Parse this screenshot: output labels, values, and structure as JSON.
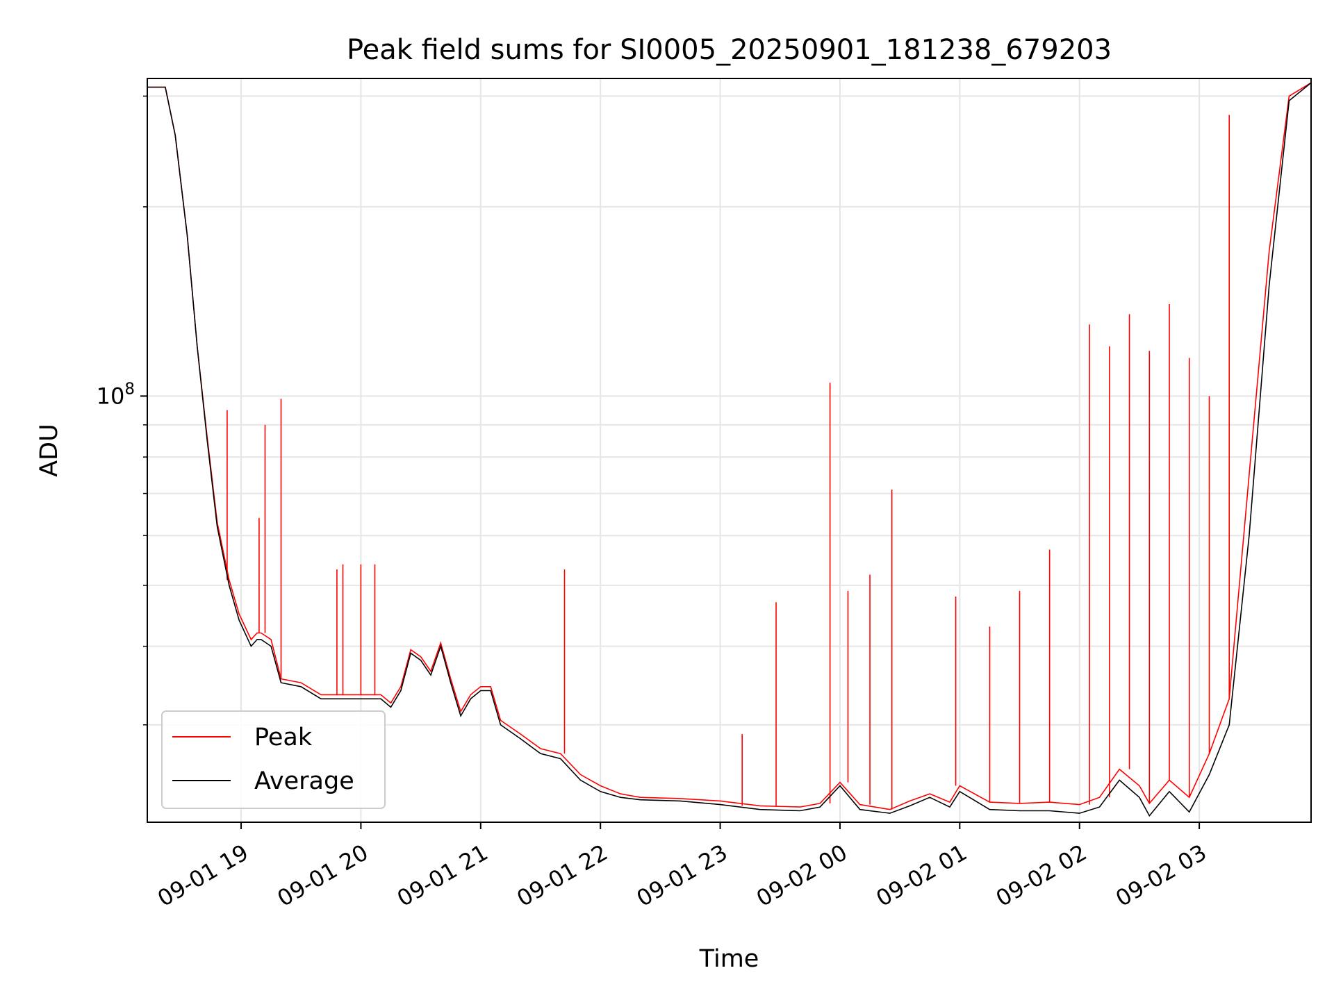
{
  "chart_data": {
    "type": "line",
    "title": "Peak field sums for SI0005_20250901_181238_679203",
    "xlabel": "Time",
    "ylabel": "ADU",
    "yscale": "log",
    "ylim": [
      21000000,
      320000000
    ],
    "xlim": [
      "2025-09-01 18:13",
      "2025-09-02 03:56"
    ],
    "grid": true,
    "legend_position": "lower-left",
    "x_tick_labels": [
      "09-01 19",
      "09-01 20",
      "09-01 21",
      "09-01 22",
      "09-01 23",
      "09-02 00",
      "09-02 01",
      "09-02 02",
      "09-02 03"
    ],
    "x_ticks": [
      "2025-09-01 19:00",
      "2025-09-01 20:00",
      "2025-09-01 21:00",
      "2025-09-01 22:00",
      "2025-09-01 23:00",
      "2025-09-02 00:00",
      "2025-09-02 01:00",
      "2025-09-02 02:00",
      "2025-09-02 03:00"
    ],
    "y_tick_labels": [
      {
        "value": 100000000,
        "base": "10",
        "exp": "8"
      }
    ],
    "colors": {
      "peak": "#ff0000",
      "average": "#000000",
      "grid": "#e6e6e6"
    },
    "series": [
      {
        "name": "Average",
        "x": [
          "2025-09-01 18:13",
          "2025-09-01 18:22",
          "2025-09-01 18:27",
          "2025-09-01 18:33",
          "2025-09-01 18:38",
          "2025-09-01 18:43",
          "2025-09-01 18:48",
          "2025-09-01 18:54",
          "2025-09-01 18:59",
          "2025-09-01 19:05",
          "2025-09-01 19:08",
          "2025-09-01 19:10",
          "2025-09-01 19:15",
          "2025-09-01 19:20",
          "2025-09-01 19:30",
          "2025-09-01 19:40",
          "2025-09-01 19:50",
          "2025-09-01 20:00",
          "2025-09-01 20:10",
          "2025-09-01 20:15",
          "2025-09-01 20:20",
          "2025-09-01 20:25",
          "2025-09-01 20:30",
          "2025-09-01 20:35",
          "2025-09-01 20:40",
          "2025-09-01 20:45",
          "2025-09-01 20:50",
          "2025-09-01 20:55",
          "2025-09-01 21:00",
          "2025-09-01 21:05",
          "2025-09-01 21:10",
          "2025-09-01 21:20",
          "2025-09-01 21:30",
          "2025-09-01 21:40",
          "2025-09-01 21:50",
          "2025-09-01 22:00",
          "2025-09-01 22:10",
          "2025-09-01 22:20",
          "2025-09-01 22:40",
          "2025-09-01 23:00",
          "2025-09-01 23:20",
          "2025-09-01 23:40",
          "2025-09-01 23:50",
          "2025-09-02 00:00",
          "2025-09-02 00:10",
          "2025-09-02 00:25",
          "2025-09-02 00:35",
          "2025-09-02 00:45",
          "2025-09-02 00:55",
          "2025-09-02 01:00",
          "2025-09-02 01:15",
          "2025-09-02 01:30",
          "2025-09-02 01:45",
          "2025-09-02 02:00",
          "2025-09-02 02:10",
          "2025-09-02 02:20",
          "2025-09-02 02:30",
          "2025-09-02 02:35",
          "2025-09-02 02:45",
          "2025-09-02 02:55",
          "2025-09-02 03:05",
          "2025-09-02 03:15",
          "2025-09-02 03:25",
          "2025-09-02 03:35",
          "2025-09-02 03:45",
          "2025-09-02 03:56"
        ],
        "values": [
          310000000,
          310000000,
          260000000,
          180000000,
          120000000,
          85000000,
          62000000,
          50000000,
          44000000,
          40000000,
          41000000,
          41000000,
          40000000,
          35000000,
          34500000,
          33000000,
          33000000,
          33000000,
          33000000,
          32000000,
          34000000,
          39000000,
          38000000,
          36000000,
          40000000,
          35000000,
          31000000,
          33000000,
          34000000,
          34000000,
          30000000,
          28500000,
          27000000,
          26500000,
          24500000,
          23500000,
          23000000,
          22800000,
          22700000,
          22400000,
          22000000,
          21900000,
          22200000,
          24000000,
          22000000,
          21700000,
          22300000,
          23000000,
          22200000,
          23500000,
          22000000,
          21900000,
          21900000,
          21700000,
          22200000,
          24500000,
          23000000,
          21500000,
          23500000,
          21800000,
          25000000,
          30000000,
          60000000,
          150000000,
          295000000,
          315000000
        ]
      },
      {
        "name": "Peak",
        "x": [
          "2025-09-01 18:13",
          "2025-09-01 18:22",
          "2025-09-01 18:27",
          "2025-09-01 18:33",
          "2025-09-01 18:38",
          "2025-09-01 18:43",
          "2025-09-01 18:48",
          "2025-09-01 18:54",
          "2025-09-01 18:59",
          "2025-09-01 19:05",
          "2025-09-01 19:08",
          "2025-09-01 19:10",
          "2025-09-01 19:15",
          "2025-09-01 19:20",
          "2025-09-01 19:30",
          "2025-09-01 19:40",
          "2025-09-01 19:50",
          "2025-09-01 20:00",
          "2025-09-01 20:10",
          "2025-09-01 20:15",
          "2025-09-01 20:20",
          "2025-09-01 20:25",
          "2025-09-01 20:30",
          "2025-09-01 20:35",
          "2025-09-01 20:40",
          "2025-09-01 20:45",
          "2025-09-01 20:50",
          "2025-09-01 20:55",
          "2025-09-01 21:00",
          "2025-09-01 21:05",
          "2025-09-01 21:10",
          "2025-09-01 21:20",
          "2025-09-01 21:30",
          "2025-09-01 21:40",
          "2025-09-01 21:50",
          "2025-09-01 22:00",
          "2025-09-01 22:10",
          "2025-09-01 22:20",
          "2025-09-01 22:40",
          "2025-09-01 23:00",
          "2025-09-01 23:20",
          "2025-09-01 23:40",
          "2025-09-01 23:50",
          "2025-09-02 00:00",
          "2025-09-02 00:10",
          "2025-09-02 00:25",
          "2025-09-02 00:35",
          "2025-09-02 00:45",
          "2025-09-02 00:55",
          "2025-09-02 01:00",
          "2025-09-02 01:15",
          "2025-09-02 01:30",
          "2025-09-02 01:45",
          "2025-09-02 02:00",
          "2025-09-02 02:10",
          "2025-09-02 02:20",
          "2025-09-02 02:30",
          "2025-09-02 02:35",
          "2025-09-02 02:45",
          "2025-09-02 02:55",
          "2025-09-02 03:05",
          "2025-09-02 03:15",
          "2025-09-02 03:25",
          "2025-09-02 03:35",
          "2025-09-02 03:45",
          "2025-09-02 03:56"
        ],
        "values": [
          310000000,
          310000000,
          260000000,
          180000000,
          120000000,
          86000000,
          63000000,
          51000000,
          45000000,
          41000000,
          42000000,
          42000000,
          41000000,
          35500000,
          35000000,
          33500000,
          33500000,
          33500000,
          33500000,
          32500000,
          34500000,
          39500000,
          38500000,
          36500000,
          40500000,
          35500000,
          31500000,
          33500000,
          34500000,
          34500000,
          30500000,
          29000000,
          27500000,
          27000000,
          25000000,
          24000000,
          23300000,
          23000000,
          22900000,
          22700000,
          22300000,
          22200000,
          22500000,
          24300000,
          22400000,
          22000000,
          22700000,
          23300000,
          22600000,
          24000000,
          22600000,
          22500000,
          22600000,
          22400000,
          23000000,
          25500000,
          24000000,
          22500000,
          24500000,
          23000000,
          27000000,
          33000000,
          75000000,
          170000000,
          300000000,
          315000000
        ],
        "spikes": [
          {
            "x": "2025-09-01 18:53",
            "value": 95000000
          },
          {
            "x": "2025-09-01 19:09",
            "value": 64000000
          },
          {
            "x": "2025-09-01 19:12",
            "value": 90000000
          },
          {
            "x": "2025-09-01 19:20",
            "value": 99000000
          },
          {
            "x": "2025-09-01 19:48",
            "value": 53000000
          },
          {
            "x": "2025-09-01 19:51",
            "value": 54000000
          },
          {
            "x": "2025-09-01 20:00",
            "value": 54000000
          },
          {
            "x": "2025-09-01 20:07",
            "value": 54000000
          },
          {
            "x": "2025-09-01 21:42",
            "value": 53000000
          },
          {
            "x": "2025-09-01 23:11",
            "value": 29000000
          },
          {
            "x": "2025-09-01 23:28",
            "value": 47000000
          },
          {
            "x": "2025-09-01 23:55",
            "value": 105000000
          },
          {
            "x": "2025-09-02 00:04",
            "value": 49000000
          },
          {
            "x": "2025-09-02 00:15",
            "value": 52000000
          },
          {
            "x": "2025-09-02 00:26",
            "value": 71000000
          },
          {
            "x": "2025-09-02 00:58",
            "value": 48000000
          },
          {
            "x": "2025-09-02 01:15",
            "value": 43000000
          },
          {
            "x": "2025-09-02 01:30",
            "value": 49000000
          },
          {
            "x": "2025-09-02 01:45",
            "value": 57000000
          },
          {
            "x": "2025-09-02 02:05",
            "value": 130000000
          },
          {
            "x": "2025-09-02 02:15",
            "value": 120000000
          },
          {
            "x": "2025-09-02 02:25",
            "value": 135000000
          },
          {
            "x": "2025-09-02 02:35",
            "value": 118000000
          },
          {
            "x": "2025-09-02 02:45",
            "value": 140000000
          },
          {
            "x": "2025-09-02 02:55",
            "value": 115000000
          },
          {
            "x": "2025-09-02 03:05",
            "value": 100000000
          },
          {
            "x": "2025-09-02 03:15",
            "value": 280000000
          }
        ]
      }
    ]
  },
  "legend": {
    "peak_label": "Peak",
    "average_label": "Average"
  }
}
